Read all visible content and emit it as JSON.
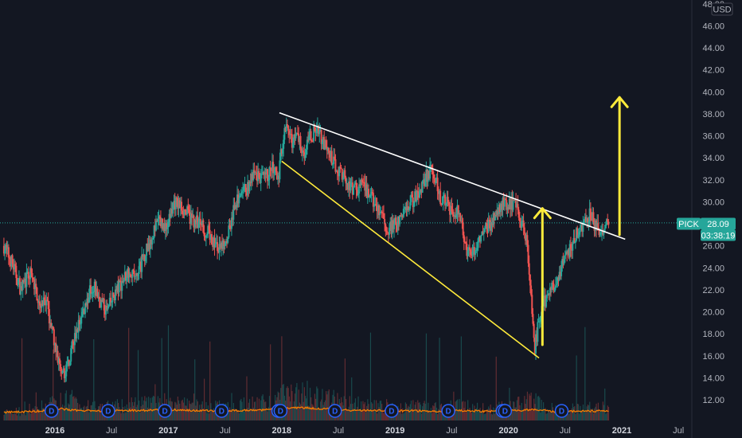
{
  "chart_data": {
    "type": "candlestick",
    "currency": "USD",
    "symbol": "PICK",
    "last_price": "28.09",
    "countdown": "03:38:19",
    "ylim": [
      10.5,
      48.0
    ],
    "y_ticks": [
      "12.00",
      "14.00",
      "16.00",
      "18.00",
      "20.00",
      "22.00",
      "24.00",
      "26.00",
      "28.00",
      "30.00",
      "32.00",
      "34.00",
      "36.00",
      "38.00",
      "40.00",
      "42.00",
      "44.00",
      "46.00",
      "48.00"
    ],
    "x_ticks": [
      {
        "label": "2016",
        "t": 2016.0,
        "year": true
      },
      {
        "label": "Jul",
        "t": 2016.5,
        "year": false
      },
      {
        "label": "2017",
        "t": 2017.0,
        "year": true
      },
      {
        "label": "Jul",
        "t": 2017.5,
        "year": false
      },
      {
        "label": "2018",
        "t": 2018.0,
        "year": true
      },
      {
        "label": "Jul",
        "t": 2018.5,
        "year": false
      },
      {
        "label": "2019",
        "t": 2019.0,
        "year": true
      },
      {
        "label": "Jul",
        "t": 2019.5,
        "year": false
      },
      {
        "label": "2020",
        "t": 2020.0,
        "year": true
      },
      {
        "label": "Jul",
        "t": 2020.5,
        "year": false
      },
      {
        "label": "2021",
        "t": 2021.0,
        "year": true
      },
      {
        "label": "Jul",
        "t": 2021.5,
        "year": false
      }
    ],
    "price_path": [
      [
        2015.55,
        26.0
      ],
      [
        2015.62,
        24.5
      ],
      [
        2015.7,
        22.0
      ],
      [
        2015.78,
        23.5
      ],
      [
        2015.86,
        21.0
      ],
      [
        2015.93,
        20.5
      ],
      [
        2016.03,
        15.5
      ],
      [
        2016.06,
        13.8
      ],
      [
        2016.12,
        15.5
      ],
      [
        2016.2,
        18.5
      ],
      [
        2016.28,
        21.0
      ],
      [
        2016.33,
        22.5
      ],
      [
        2016.4,
        21.0
      ],
      [
        2016.46,
        20.0
      ],
      [
        2016.52,
        21.5
      ],
      [
        2016.58,
        22.5
      ],
      [
        2016.66,
        24.0
      ],
      [
        2016.72,
        23.0
      ],
      [
        2016.78,
        25.0
      ],
      [
        2016.86,
        27.0
      ],
      [
        2016.92,
        28.5
      ],
      [
        2016.98,
        27.5
      ],
      [
        2017.05,
        30.0
      ],
      [
        2017.12,
        29.5
      ],
      [
        2017.2,
        28.5
      ],
      [
        2017.28,
        28.0
      ],
      [
        2017.36,
        27.0
      ],
      [
        2017.45,
        25.5
      ],
      [
        2017.52,
        27.0
      ],
      [
        2017.6,
        30.0
      ],
      [
        2017.68,
        31.0
      ],
      [
        2017.76,
        32.5
      ],
      [
        2017.84,
        32.0
      ],
      [
        2017.92,
        33.0
      ],
      [
        2017.97,
        32.0
      ],
      [
        2018.0,
        35.0
      ],
      [
        2018.04,
        37.5
      ],
      [
        2018.08,
        35.5
      ],
      [
        2018.14,
        36.0
      ],
      [
        2018.2,
        34.5
      ],
      [
        2018.26,
        36.0
      ],
      [
        2018.32,
        36.8
      ],
      [
        2018.38,
        35.0
      ],
      [
        2018.46,
        33.5
      ],
      [
        2018.54,
        32.5
      ],
      [
        2018.62,
        31.0
      ],
      [
        2018.7,
        31.5
      ],
      [
        2018.78,
        30.5
      ],
      [
        2018.86,
        29.0
      ],
      [
        2018.94,
        27.5
      ],
      [
        2019.02,
        28.0
      ],
      [
        2019.1,
        29.5
      ],
      [
        2019.18,
        30.5
      ],
      [
        2019.26,
        32.0
      ],
      [
        2019.32,
        33.0
      ],
      [
        2019.4,
        30.5
      ],
      [
        2019.48,
        29.5
      ],
      [
        2019.56,
        29.0
      ],
      [
        2019.62,
        26.0
      ],
      [
        2019.68,
        25.0
      ],
      [
        2019.76,
        27.0
      ],
      [
        2019.84,
        28.0
      ],
      [
        2019.92,
        29.5
      ],
      [
        2020.0,
        30.0
      ],
      [
        2020.06,
        29.5
      ],
      [
        2020.12,
        28.0
      ],
      [
        2020.16,
        26.5
      ],
      [
        2020.2,
        21.0
      ],
      [
        2020.23,
        16.5
      ],
      [
        2020.26,
        18.5
      ],
      [
        2020.3,
        20.5
      ],
      [
        2020.36,
        21.5
      ],
      [
        2020.44,
        23.5
      ],
      [
        2020.52,
        25.0
      ],
      [
        2020.6,
        27.0
      ],
      [
        2020.66,
        28.0
      ],
      [
        2020.72,
        29.0
      ],
      [
        2020.76,
        28.0
      ],
      [
        2020.82,
        27.0
      ],
      [
        2020.86,
        27.8
      ],
      [
        2020.89,
        28.09
      ]
    ],
    "volume_profile": [
      [
        2015.55,
        0.3
      ],
      [
        2015.7,
        0.35
      ],
      [
        2015.9,
        0.5
      ],
      [
        2016.06,
        0.8
      ],
      [
        2016.2,
        0.6
      ],
      [
        2016.4,
        0.45
      ],
      [
        2016.6,
        0.55
      ],
      [
        2016.8,
        0.6
      ],
      [
        2017.0,
        0.7
      ],
      [
        2017.2,
        0.55
      ],
      [
        2017.4,
        0.5
      ],
      [
        2017.6,
        0.55
      ],
      [
        2017.8,
        0.6
      ],
      [
        2018.0,
        0.9
      ],
      [
        2018.2,
        1.0
      ],
      [
        2018.4,
        0.8
      ],
      [
        2018.6,
        0.6
      ],
      [
        2018.8,
        0.55
      ],
      [
        2019.0,
        0.5
      ],
      [
        2019.2,
        0.5
      ],
      [
        2019.4,
        0.45
      ],
      [
        2019.6,
        0.55
      ],
      [
        2019.8,
        0.45
      ],
      [
        2020.0,
        0.5
      ],
      [
        2020.22,
        0.7
      ],
      [
        2020.4,
        0.4
      ],
      [
        2020.6,
        0.45
      ],
      [
        2020.89,
        0.5
      ]
    ],
    "dividend_markers": [
      2015.97,
      2016.47,
      2016.97,
      2017.47,
      2017.97,
      2017.99,
      2018.47,
      2018.97,
      2019.47,
      2019.95,
      2019.97,
      2020.47
    ],
    "trendlines": [
      {
        "name": "upper-resistance",
        "color": "#ffffff",
        "points": [
          [
            2017.98,
            38.1
          ],
          [
            2021.03,
            26.6
          ]
        ]
      },
      {
        "name": "lower-support",
        "color": "#ffeb3b",
        "points": [
          [
            2018.0,
            33.7
          ],
          [
            2020.27,
            15.8
          ]
        ]
      }
    ],
    "arrows": [
      {
        "name": "arrow-up-small",
        "color": "#ffeb3b",
        "from": [
          2020.3,
          17.0
        ],
        "to": [
          2020.3,
          29.4
        ]
      },
      {
        "name": "arrow-up-large",
        "color": "#ffeb3b",
        "from": [
          2020.98,
          27.0
        ],
        "to": [
          2020.98,
          39.5
        ]
      }
    ]
  }
}
